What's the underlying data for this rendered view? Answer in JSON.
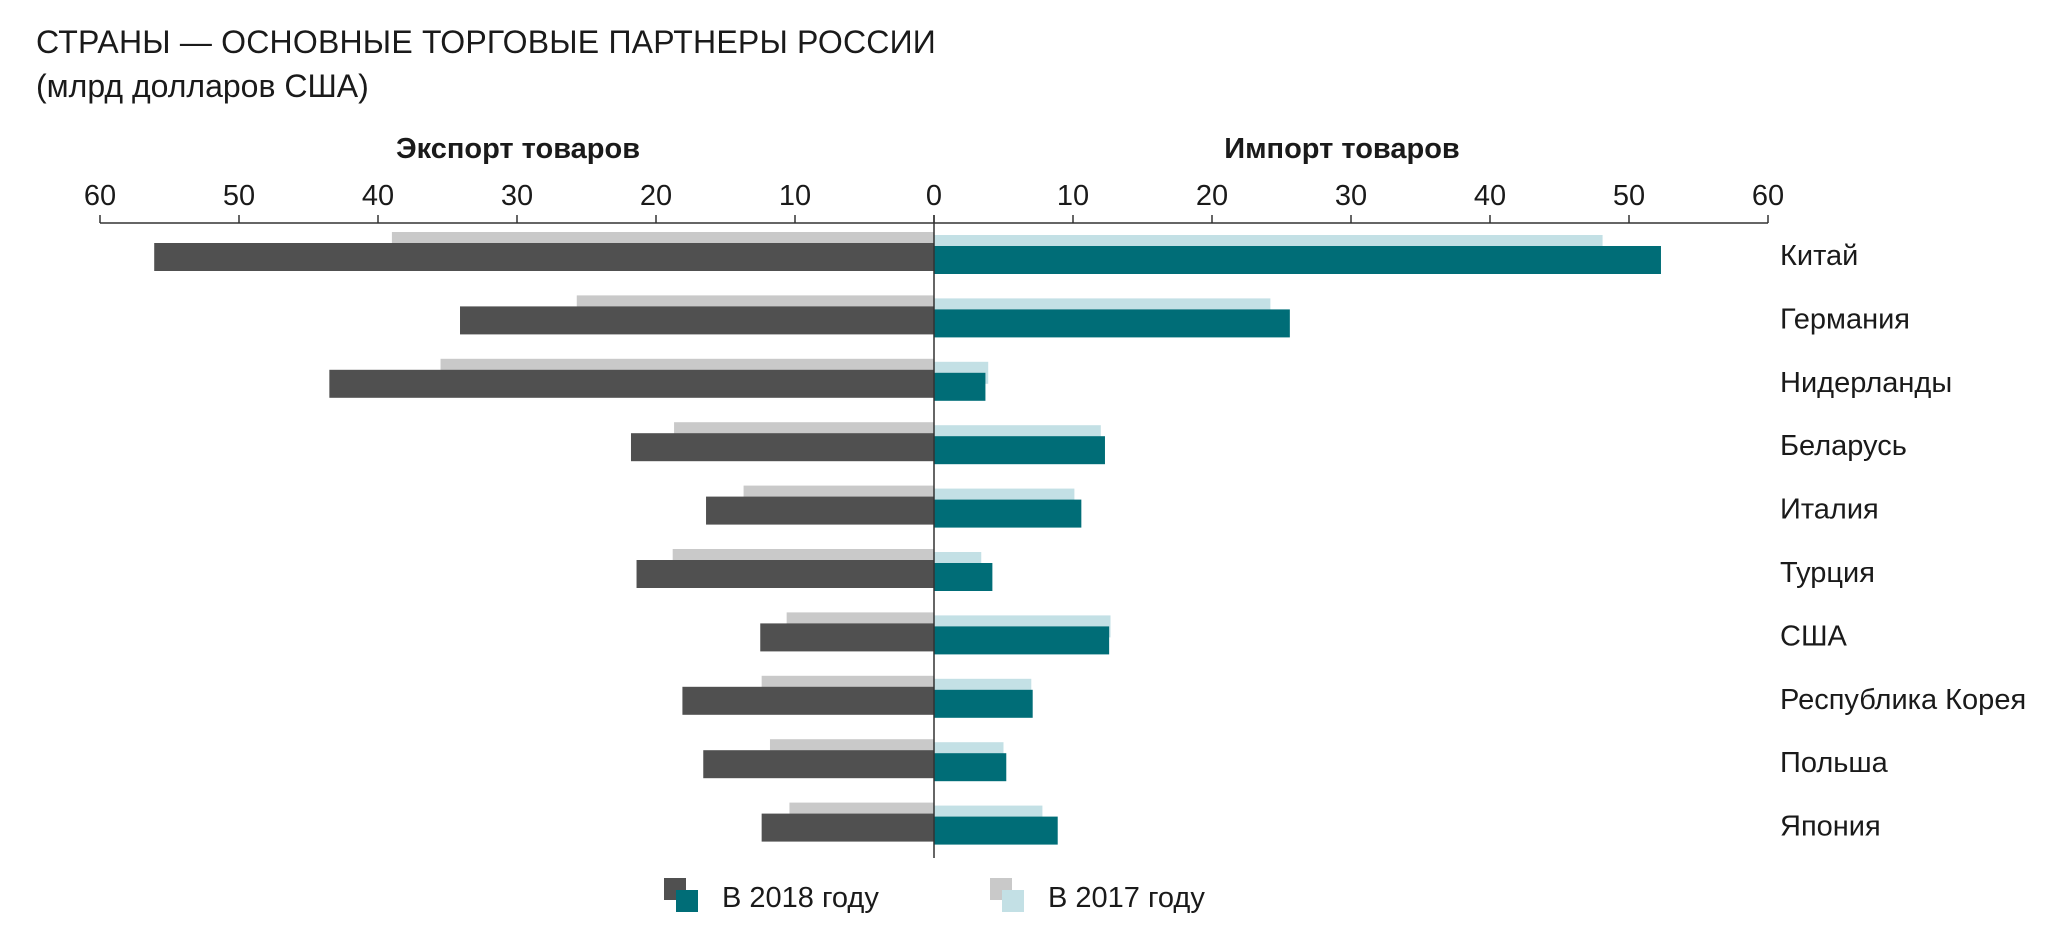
{
  "title": "СТРАНЫ — ОСНОВНЫЕ ТОРГОВЫЕ ПАРТНЕРЫ РОССИИ",
  "subtitle": "(млрд долларов США)",
  "colors": {
    "export_2018": "#505050",
    "export_2017": "#c9c9c9",
    "import_2018": "#006d77",
    "import_2017": "#c3e0e5",
    "axis": "#333333",
    "text": "#1a1a1a"
  },
  "chart_data": {
    "type": "bar",
    "orientation": "horizontal-diverging",
    "left_panel_label": "Экспорт товаров",
    "right_panel_label": "Импорт товаров",
    "xlim_left": [
      60,
      0
    ],
    "xlim_right": [
      0,
      60
    ],
    "ticks_left": [
      "60",
      "50",
      "40",
      "30",
      "20",
      "10",
      "0"
    ],
    "ticks_right": [
      "10",
      "20",
      "30",
      "40",
      "50",
      "60"
    ],
    "categories": [
      "Китай",
      "Германия",
      "Нидерланды",
      "Беларусь",
      "Италия",
      "Турция",
      "США",
      "Республика Корея",
      "Польша",
      "Япония"
    ],
    "series": [
      {
        "name": "В 2017 году",
        "key": "export_2017",
        "values": [
          39,
          25.7,
          35.5,
          18.7,
          13.7,
          18.8,
          10.6,
          12.4,
          11.8,
          10.4
        ]
      },
      {
        "name": "В 2018 году",
        "key": "export_2018",
        "values": [
          56.1,
          34.1,
          43.5,
          21.8,
          16.4,
          21.4,
          12.5,
          18.1,
          16.6,
          12.4
        ]
      },
      {
        "name": "В 2017 году",
        "key": "import_2017",
        "values": [
          48.1,
          24.2,
          3.9,
          12,
          10.1,
          3.4,
          12.7,
          7,
          5,
          7.8
        ]
      },
      {
        "name": "В 2018 году",
        "key": "import_2018",
        "values": [
          52.3,
          25.6,
          3.7,
          12.3,
          10.6,
          4.2,
          12.6,
          7.1,
          5.2,
          8.9
        ]
      }
    ],
    "legend": {
      "placement": "bottom-center",
      "items": [
        "В 2018 году",
        "В 2017 году"
      ]
    },
    "grid": false
  }
}
